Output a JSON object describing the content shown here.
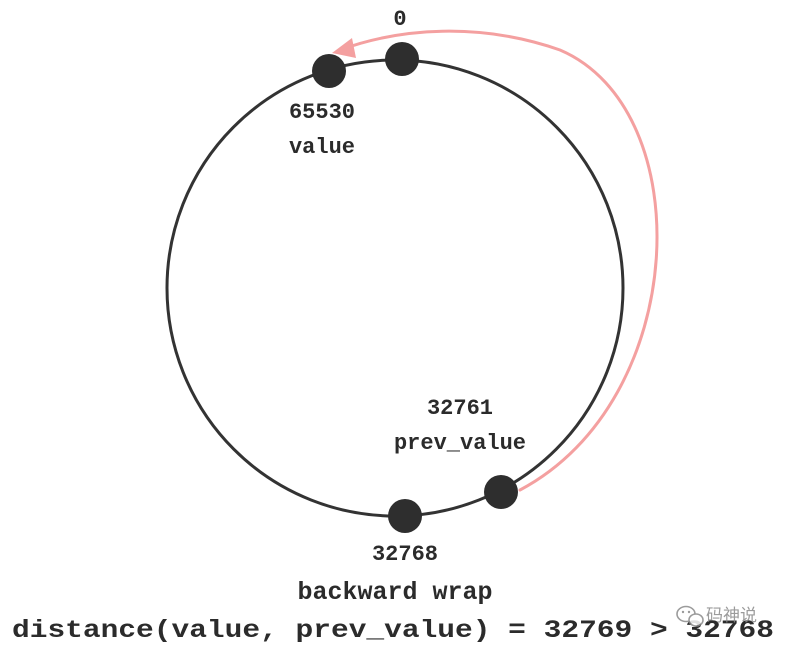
{
  "diagram": {
    "nodes": {
      "zero": {
        "label": "0"
      },
      "value": {
        "number": "65530",
        "name": "value"
      },
      "prev_value": {
        "number": "32761",
        "name": "prev_value"
      },
      "midpoint": {
        "number": "32768"
      }
    },
    "caption": {
      "title": "backward wrap",
      "formula": "distance(value, prev_value) = 32769 > 32768"
    },
    "watermark": "码神说",
    "colors": {
      "ring": "#333333",
      "node": "#2e2e2e",
      "arrow": "#f4a0a0",
      "text": "#2b2b2b"
    }
  }
}
